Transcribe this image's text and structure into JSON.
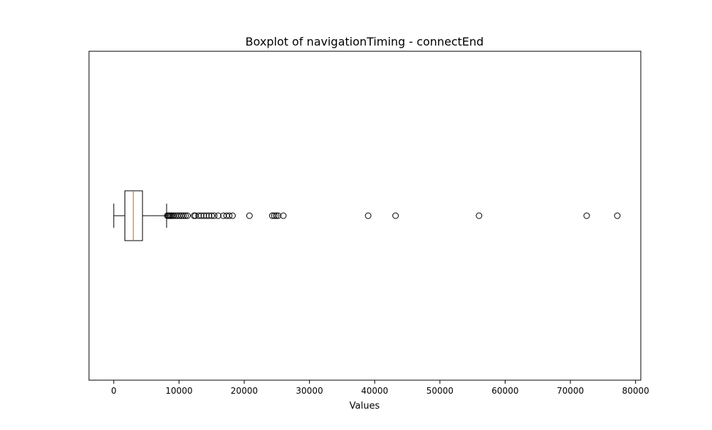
{
  "chart_data": {
    "type": "boxplot",
    "orientation": "horizontal",
    "title": "Boxplot of navigationTiming - connectEnd",
    "xlabel": "Values",
    "ylabel": "",
    "xlim": [
      -3800,
      80800
    ],
    "xticks": [
      0,
      10000,
      20000,
      30000,
      40000,
      50000,
      60000,
      70000,
      80000
    ],
    "xtick_labels": [
      "0",
      "10000",
      "20000",
      "30000",
      "40000",
      "50000",
      "60000",
      "70000",
      "80000"
    ],
    "yticks_visible": false,
    "grid": false,
    "box": {
      "whisker_low": 0,
      "q1": 1700,
      "median": 3000,
      "q3": 4400,
      "whisker_high": 8100
    },
    "outliers": [
      8200,
      8350,
      8500,
      8650,
      8800,
      9000,
      9200,
      9500,
      9800,
      10100,
      10400,
      10700,
      11000,
      11300,
      12300,
      12500,
      13000,
      13400,
      13800,
      14200,
      14600,
      15000,
      15400,
      16000,
      16800,
      17300,
      17700,
      18200,
      20800,
      24300,
      24600,
      24900,
      25200,
      26000,
      39000,
      43200,
      56000,
      72500,
      77200
    ],
    "colors": {
      "box": "#000000",
      "median": "#e07b20",
      "outlier_edge": "#000000",
      "background": "#ffffff"
    }
  }
}
